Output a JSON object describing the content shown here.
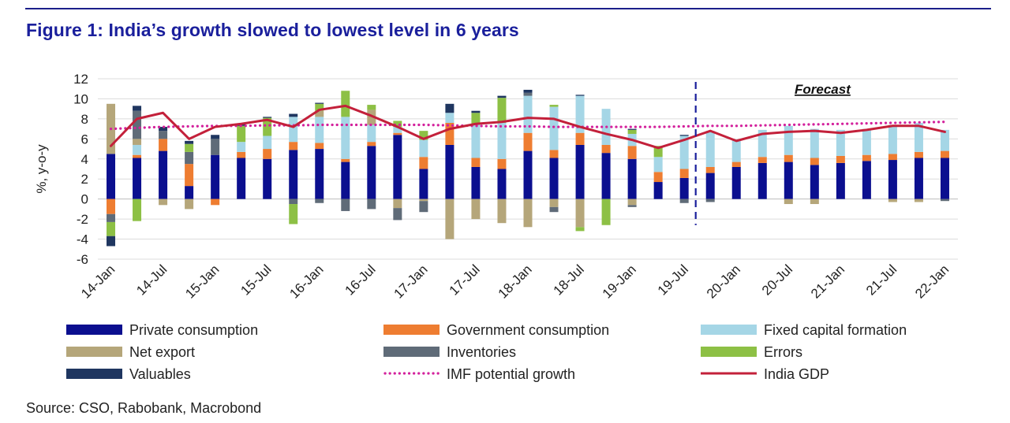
{
  "title": "Figure 1: India’s growth slowed to lowest level in 6 years",
  "source": "Source: CSO, Rabobank, Macrobond",
  "chart_data": {
    "type": "bar",
    "stacked": true,
    "ylabel": "%, y-o-y",
    "ylim": [
      -6,
      12
    ],
    "yticks": [
      -6,
      -4,
      -2,
      0,
      2,
      4,
      6,
      8,
      10,
      12
    ],
    "grid": true,
    "legend_position": "bottom",
    "forecast_label": "Forecast",
    "forecast_starts_at": "19-Jul",
    "x_tick_labels": [
      "14-Jan",
      "14-Jul",
      "15-Jan",
      "15-Jul",
      "16-Jan",
      "16-Jul",
      "17-Jan",
      "17-Jul",
      "18-Jan",
      "18-Jul",
      "19-Jan",
      "19-Jul",
      "20-Jan",
      "20-Jul",
      "21-Jan",
      "21-Jul",
      "22-Jan"
    ],
    "categories": [
      "14-Jan",
      "14-Apr",
      "14-Jul",
      "14-Oct",
      "15-Jan",
      "15-Apr",
      "15-Jul",
      "15-Oct",
      "16-Jan",
      "16-Apr",
      "16-Jul",
      "16-Oct",
      "17-Jan",
      "17-Apr",
      "17-Jul",
      "17-Oct",
      "18-Jan",
      "18-Apr",
      "18-Jul",
      "18-Oct",
      "19-Jan",
      "19-Apr",
      "19-Jul",
      "19-Oct",
      "20-Jan",
      "20-Apr",
      "20-Jul",
      "20-Oct",
      "21-Jan",
      "21-Apr",
      "21-Jul",
      "21-Oct",
      "22-Jan"
    ],
    "series": [
      {
        "name": "Private consumption",
        "kind": "bar",
        "color": "#0b0f8f",
        "values": [
          4.5,
          4.1,
          4.8,
          1.3,
          4.4,
          4.1,
          4.0,
          4.9,
          5.0,
          3.7,
          5.3,
          6.4,
          3.0,
          5.4,
          3.2,
          3.0,
          4.8,
          4.1,
          5.4,
          4.6,
          4.0,
          1.7,
          2.1,
          2.6,
          3.2,
          3.6,
          3.7,
          3.4,
          3.6,
          3.8,
          3.9,
          4.1,
          4.1
        ]
      },
      {
        "name": "Government consumption",
        "kind": "bar",
        "color": "#ee7d31",
        "values": [
          -1.5,
          0.3,
          1.2,
          2.2,
          -0.6,
          0.6,
          1.0,
          0.8,
          0.6,
          0.3,
          0.4,
          0.2,
          1.2,
          2.2,
          0.9,
          1.0,
          1.8,
          0.8,
          1.2,
          0.8,
          1.3,
          1.0,
          0.9,
          0.6,
          0.5,
          0.6,
          0.7,
          0.7,
          0.7,
          0.6,
          0.6,
          0.6,
          0.7
        ]
      },
      {
        "name": "Fixed capital formation",
        "kind": "bar",
        "color": "#a5d6e6",
        "values": [
          0,
          1.0,
          0,
          0,
          0,
          1.0,
          1.3,
          2.5,
          2.6,
          4.2,
          1.7,
          0.6,
          1.7,
          1.0,
          3.4,
          3.6,
          3.7,
          4.3,
          3.7,
          3.6,
          1.2,
          1.5,
          3.3,
          3.6,
          2.2,
          2.7,
          2.9,
          2.9,
          2.6,
          2.6,
          2.9,
          2.9,
          2.1
        ]
      },
      {
        "name": "Net export",
        "kind": "bar",
        "color": "#b5a67a",
        "values": [
          5.0,
          0.6,
          -0.6,
          -1.0,
          0,
          0,
          0,
          0,
          0.6,
          0,
          1.5,
          -0.9,
          -0.2,
          -4.0,
          -2.0,
          -2.4,
          -2.8,
          -0.8,
          -2.8,
          0,
          -0.6,
          0,
          0,
          0,
          0,
          0,
          -0.5,
          -0.5,
          0,
          0,
          -0.3,
          -0.3,
          0
        ]
      },
      {
        "name": "Inventories",
        "kind": "bar",
        "color": "#5f6b78",
        "values": [
          -0.8,
          2.8,
          0.8,
          1.2,
          1.6,
          0,
          0,
          -0.5,
          -0.4,
          -1.2,
          -1.0,
          -1.2,
          -1.1,
          0,
          0,
          0,
          0.3,
          -0.5,
          0,
          0,
          -0.2,
          0,
          -0.4,
          -0.3,
          0,
          0,
          0,
          0,
          0,
          0,
          0,
          0,
          -0.2
        ]
      },
      {
        "name": "Errors",
        "kind": "bar",
        "color": "#8dc045",
        "values": [
          -1.4,
          -2.2,
          0,
          0.8,
          0,
          1.6,
          1.8,
          -2.0,
          0.7,
          2.6,
          0.5,
          0.6,
          0.9,
          0,
          1.1,
          2.5,
          0,
          0.2,
          -0.4,
          -2.6,
          0.4,
          1.1,
          0,
          0,
          0,
          0,
          0,
          0,
          0,
          0,
          0,
          0,
          0
        ]
      },
      {
        "name": "Valuables",
        "kind": "bar",
        "color": "#1f3660",
        "values": [
          -1.0,
          0.5,
          0.4,
          0.3,
          0.4,
          0.2,
          0.1,
          0.3,
          0.1,
          0,
          0,
          0,
          0,
          0.9,
          0.2,
          0.2,
          0.3,
          0,
          0.1,
          0,
          0.1,
          0,
          0.1,
          0,
          0,
          0,
          0,
          0,
          0,
          0,
          0,
          0,
          0
        ]
      },
      {
        "name": "IMF potential growth",
        "kind": "line-dotted",
        "color": "#d3219c",
        "values": [
          7.0,
          7.1,
          7.2,
          7.25,
          7.3,
          7.3,
          7.35,
          7.35,
          7.4,
          7.4,
          7.4,
          7.4,
          7.4,
          7.35,
          7.3,
          7.25,
          7.25,
          7.2,
          7.2,
          7.2,
          7.2,
          7.2,
          7.25,
          7.3,
          7.3,
          7.35,
          7.4,
          7.45,
          7.5,
          7.55,
          7.6,
          7.65,
          7.7
        ]
      },
      {
        "name": "India GDP",
        "kind": "line",
        "color": "#c3203a",
        "values": [
          5.3,
          8.0,
          8.6,
          6.0,
          7.2,
          7.5,
          7.9,
          7.2,
          8.9,
          9.3,
          8.3,
          7.2,
          6.0,
          7.0,
          7.5,
          7.7,
          8.1,
          8.0,
          7.2,
          6.5,
          5.9,
          5.1,
          5.9,
          6.8,
          5.8,
          6.5,
          6.7,
          6.8,
          6.6,
          6.9,
          7.3,
          7.3,
          6.7
        ]
      }
    ],
    "legend": [
      "Private consumption",
      "Government consumption",
      "Fixed capital formation",
      "Net export",
      "Inventories",
      "Errors",
      "Valuables",
      "IMF potential growth",
      "India GDP"
    ]
  }
}
